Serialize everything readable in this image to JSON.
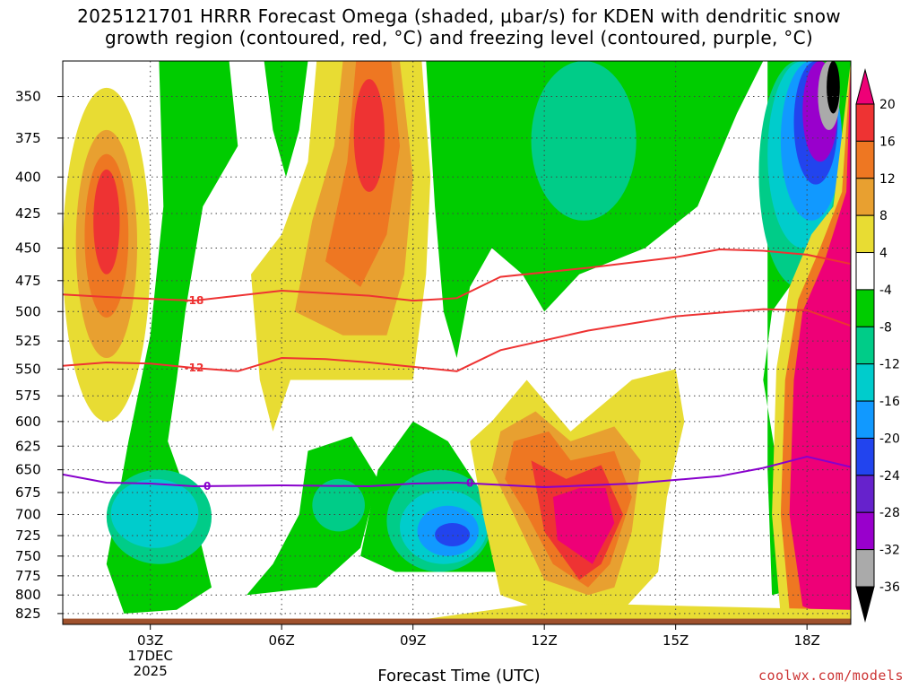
{
  "title": {
    "line1": "2025121701 HRRR Forecast Omega (shaded, μbar/s) for KDEN with dendritic snow",
    "line2": "growth region (contoured, red, °C) and freezing level (contoured, purple, °C)"
  },
  "credit": "coolwx.com/models",
  "chart_data": {
    "type": "heatmap",
    "title": "2025121701 HRRR Forecast Omega (shaded, μbar/s) for KDEN with dendritic snow growth region (contoured, red, °C) and freezing level (contoured, purple, °C)",
    "xlabel": "Forecast Time (UTC)",
    "x_ticks": [
      "03Z",
      "06Z",
      "09Z",
      "12Z",
      "15Z",
      "18Z"
    ],
    "x_tick_values": [
      3,
      6,
      9,
      12,
      15,
      18
    ],
    "x_first_tick_sublabels": [
      "17DEC",
      "2025"
    ],
    "xlim": [
      1,
      19
    ],
    "ylabel": "",
    "y_ticks": [
      350,
      375,
      400,
      425,
      450,
      475,
      500,
      525,
      550,
      575,
      600,
      625,
      650,
      675,
      700,
      725,
      750,
      775,
      800,
      825
    ],
    "ylim": [
      330,
      840
    ],
    "y_scale": "log-pressure",
    "grid": true,
    "colorbar": {
      "position": "right",
      "labels": [
        "20",
        "16",
        "12",
        "8",
        "4",
        "-4",
        "-8",
        "-12",
        "-16",
        "-20",
        "-24",
        "-28",
        "-32",
        "-36"
      ],
      "bins": [
        {
          "range": "> 20",
          "color": "#ee0077"
        },
        {
          "range": "16 to 20",
          "color": "#ee3333"
        },
        {
          "range": "12 to 16",
          "color": "#ee7722"
        },
        {
          "range": "8 to 12",
          "color": "#e8a030"
        },
        {
          "range": "4 to 8",
          "color": "#e8dc33"
        },
        {
          "range": "-4 to 4",
          "color": "#ffffff"
        },
        {
          "range": "-8 to -4",
          "color": "#00cc00"
        },
        {
          "range": "-12 to -8",
          "color": "#00cc88"
        },
        {
          "range": "-16 to -12",
          "color": "#00cccc"
        },
        {
          "range": "-20 to -16",
          "color": "#1199ff"
        },
        {
          "range": "-24 to -20",
          "color": "#2244ee"
        },
        {
          "range": "-28 to -24",
          "color": "#6622cc"
        },
        {
          "range": "-32 to -28",
          "color": "#9900cc"
        },
        {
          "range": "-36 to -32",
          "color": "#aaaaaa"
        },
        {
          "range": "< -36",
          "color": "#000000"
        }
      ]
    },
    "contours": [
      {
        "label": "-18",
        "color": "#ee3333",
        "points": [
          [
            1,
            486
          ],
          [
            2,
            488
          ],
          [
            4,
            491
          ],
          [
            6,
            483
          ],
          [
            8,
            487
          ],
          [
            9,
            491
          ],
          [
            10,
            489
          ],
          [
            11,
            472
          ],
          [
            13,
            465
          ],
          [
            15,
            457
          ],
          [
            16,
            451
          ],
          [
            17,
            452
          ],
          [
            18,
            455
          ],
          [
            19,
            462
          ]
        ]
      },
      {
        "label": "-12",
        "color": "#ee3333",
        "points": [
          [
            1,
            547
          ],
          [
            2,
            544
          ],
          [
            3,
            545
          ],
          [
            4,
            549
          ],
          [
            5,
            552
          ],
          [
            6,
            540
          ],
          [
            7,
            541
          ],
          [
            8,
            544
          ],
          [
            9,
            548
          ],
          [
            10,
            552
          ],
          [
            11,
            533
          ],
          [
            13,
            516
          ],
          [
            15,
            504
          ],
          [
            17,
            498
          ],
          [
            18,
            499
          ],
          [
            19,
            512
          ]
        ]
      },
      {
        "label": "0",
        "color": "#8800cc",
        "points": [
          [
            1,
            655
          ],
          [
            2,
            664
          ],
          [
            3,
            665
          ],
          [
            4,
            668
          ],
          [
            6,
            667
          ],
          [
            8,
            668
          ],
          [
            9,
            665
          ],
          [
            10,
            664
          ],
          [
            12,
            669
          ],
          [
            14,
            665
          ],
          [
            16,
            657
          ],
          [
            17,
            648
          ],
          [
            18,
            636
          ],
          [
            19,
            647
          ]
        ]
      }
    ],
    "series": [
      {
        "name": "Upward motion core",
        "x": 9.9,
        "y": 722,
        "values": [
          -24
        ]
      },
      {
        "name": "Downward motion max",
        "x": 13,
        "y": 715,
        "values": [
          20
        ]
      },
      {
        "name": "Downward motion max",
        "x": 2,
        "y": 420,
        "values": [
          16
        ]
      },
      {
        "name": "Downward motion max",
        "x": 8,
        "y": 370,
        "values": [
          16
        ]
      },
      {
        "name": "Strong subsidence",
        "x": 18.5,
        "y": 600,
        "values": [
          20
        ]
      },
      {
        "name": "Upward motion",
        "x": 17.6,
        "y": 375,
        "values": [
          -28
        ]
      }
    ],
    "surface": {
      "color": "#a0522d",
      "pressure": 832
    }
  }
}
